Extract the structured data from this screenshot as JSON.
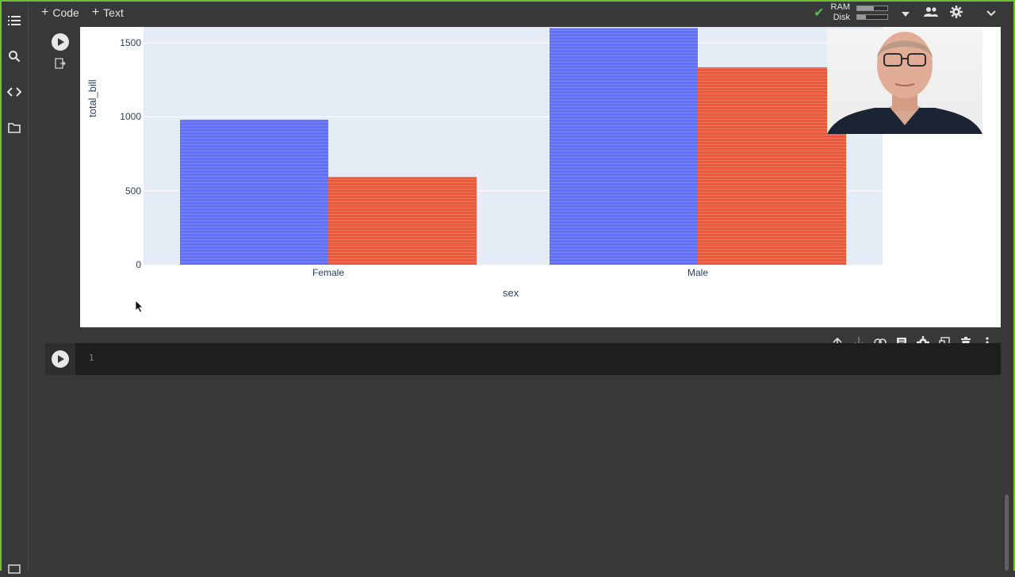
{
  "toolbar": {
    "add_code_label": "Code",
    "add_text_label": "Text",
    "ram_label": "RAM",
    "disk_label": "Disk",
    "ram_fill": 0.55,
    "disk_fill": 0.3
  },
  "code_cell": {
    "line_number": "1"
  },
  "colors": {
    "bar_blue": "#636efa",
    "bar_red": "#ef553b",
    "accent_frame": "#6fbf2e"
  },
  "chart_data": {
    "type": "bar",
    "barmode": "group",
    "categories": [
      "Female",
      "Male"
    ],
    "series": [
      {
        "values": [
          980,
          1600
        ]
      },
      {
        "values": [
          593,
          1335
        ]
      }
    ],
    "xlabel": "sex",
    "ylabel": "total_bill",
    "y_ticks": [
      "0",
      "500",
      "1000",
      "1500"
    ],
    "ylim": [
      0,
      1610
    ],
    "grid": true
  }
}
